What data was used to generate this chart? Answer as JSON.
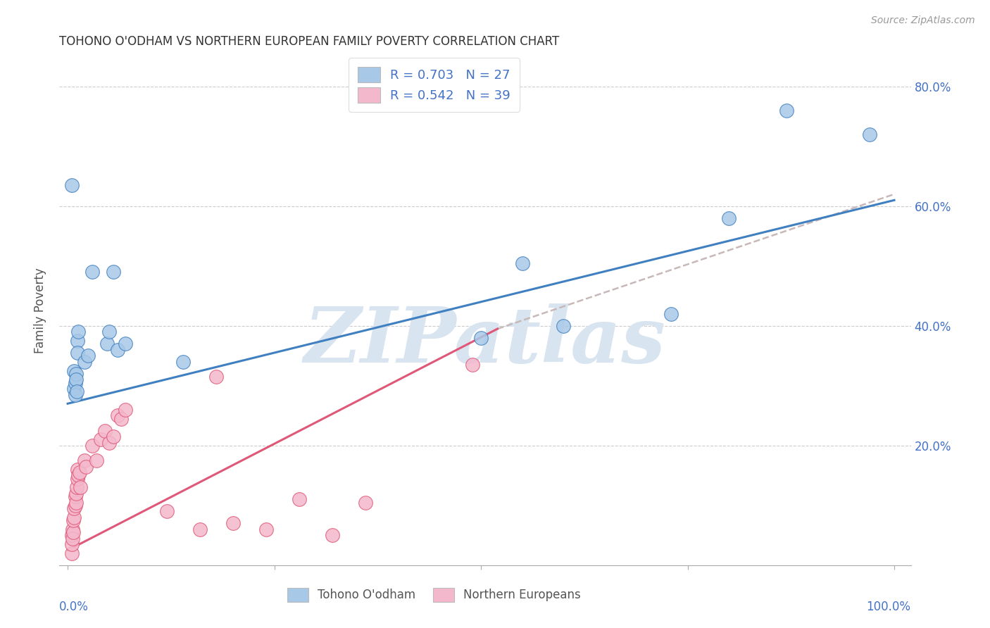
{
  "title": "TOHONO O'ODHAM VS NORTHERN EUROPEAN FAMILY POVERTY CORRELATION CHART",
  "source": "Source: ZipAtlas.com",
  "ylabel": "Family Poverty",
  "y_ticks": [
    0.0,
    0.2,
    0.4,
    0.6,
    0.8
  ],
  "y_tick_labels": [
    "",
    "20.0%",
    "40.0%",
    "60.0%",
    "80.0%"
  ],
  "color_blue": "#a8c8e8",
  "color_pink": "#f4b8cc",
  "line_blue": "#4080c0",
  "line_pink": "#e05878",
  "line_dashed_color": "#c8b8b8",
  "watermark_color": "#d8e4f0",
  "blue_points": [
    [
      0.005,
      0.635
    ],
    [
      0.008,
      0.295
    ],
    [
      0.008,
      0.325
    ],
    [
      0.009,
      0.305
    ],
    [
      0.009,
      0.285
    ],
    [
      0.01,
      0.32
    ],
    [
      0.01,
      0.31
    ],
    [
      0.011,
      0.29
    ],
    [
      0.012,
      0.375
    ],
    [
      0.012,
      0.355
    ],
    [
      0.013,
      0.39
    ],
    [
      0.02,
      0.34
    ],
    [
      0.025,
      0.35
    ],
    [
      0.03,
      0.49
    ],
    [
      0.048,
      0.37
    ],
    [
      0.05,
      0.39
    ],
    [
      0.055,
      0.49
    ],
    [
      0.06,
      0.36
    ],
    [
      0.07,
      0.37
    ],
    [
      0.14,
      0.34
    ],
    [
      0.5,
      0.38
    ],
    [
      0.55,
      0.505
    ],
    [
      0.6,
      0.4
    ],
    [
      0.73,
      0.42
    ],
    [
      0.8,
      0.58
    ],
    [
      0.87,
      0.76
    ],
    [
      0.97,
      0.72
    ]
  ],
  "pink_points": [
    [
      0.005,
      0.02
    ],
    [
      0.005,
      0.035
    ],
    [
      0.005,
      0.05
    ],
    [
      0.006,
      0.06
    ],
    [
      0.006,
      0.045
    ],
    [
      0.007,
      0.055
    ],
    [
      0.007,
      0.075
    ],
    [
      0.008,
      0.08
    ],
    [
      0.008,
      0.095
    ],
    [
      0.009,
      0.1
    ],
    [
      0.009,
      0.115
    ],
    [
      0.01,
      0.105
    ],
    [
      0.01,
      0.12
    ],
    [
      0.011,
      0.13
    ],
    [
      0.012,
      0.145
    ],
    [
      0.012,
      0.16
    ],
    [
      0.013,
      0.15
    ],
    [
      0.014,
      0.155
    ],
    [
      0.015,
      0.13
    ],
    [
      0.02,
      0.175
    ],
    [
      0.022,
      0.165
    ],
    [
      0.03,
      0.2
    ],
    [
      0.035,
      0.175
    ],
    [
      0.04,
      0.21
    ],
    [
      0.045,
      0.225
    ],
    [
      0.05,
      0.205
    ],
    [
      0.055,
      0.215
    ],
    [
      0.06,
      0.25
    ],
    [
      0.065,
      0.245
    ],
    [
      0.07,
      0.26
    ],
    [
      0.12,
      0.09
    ],
    [
      0.16,
      0.06
    ],
    [
      0.18,
      0.315
    ],
    [
      0.2,
      0.07
    ],
    [
      0.24,
      0.06
    ],
    [
      0.28,
      0.11
    ],
    [
      0.32,
      0.05
    ],
    [
      0.36,
      0.105
    ],
    [
      0.49,
      0.335
    ]
  ],
  "blue_line_x": [
    0.0,
    1.0
  ],
  "blue_line_y": [
    0.27,
    0.61
  ],
  "pink_line_x": [
    0.0,
    0.52
  ],
  "pink_line_y": [
    0.025,
    0.395
  ],
  "dashed_line_x": [
    0.52,
    1.0
  ],
  "dashed_line_y": [
    0.395,
    0.62
  ],
  "xlim": [
    -0.01,
    1.02
  ],
  "ylim": [
    0.0,
    0.85
  ],
  "xaxis_label_left": "0.0%",
  "xaxis_label_right": "100.0%",
  "xaxis_label_color": "#4472c4"
}
